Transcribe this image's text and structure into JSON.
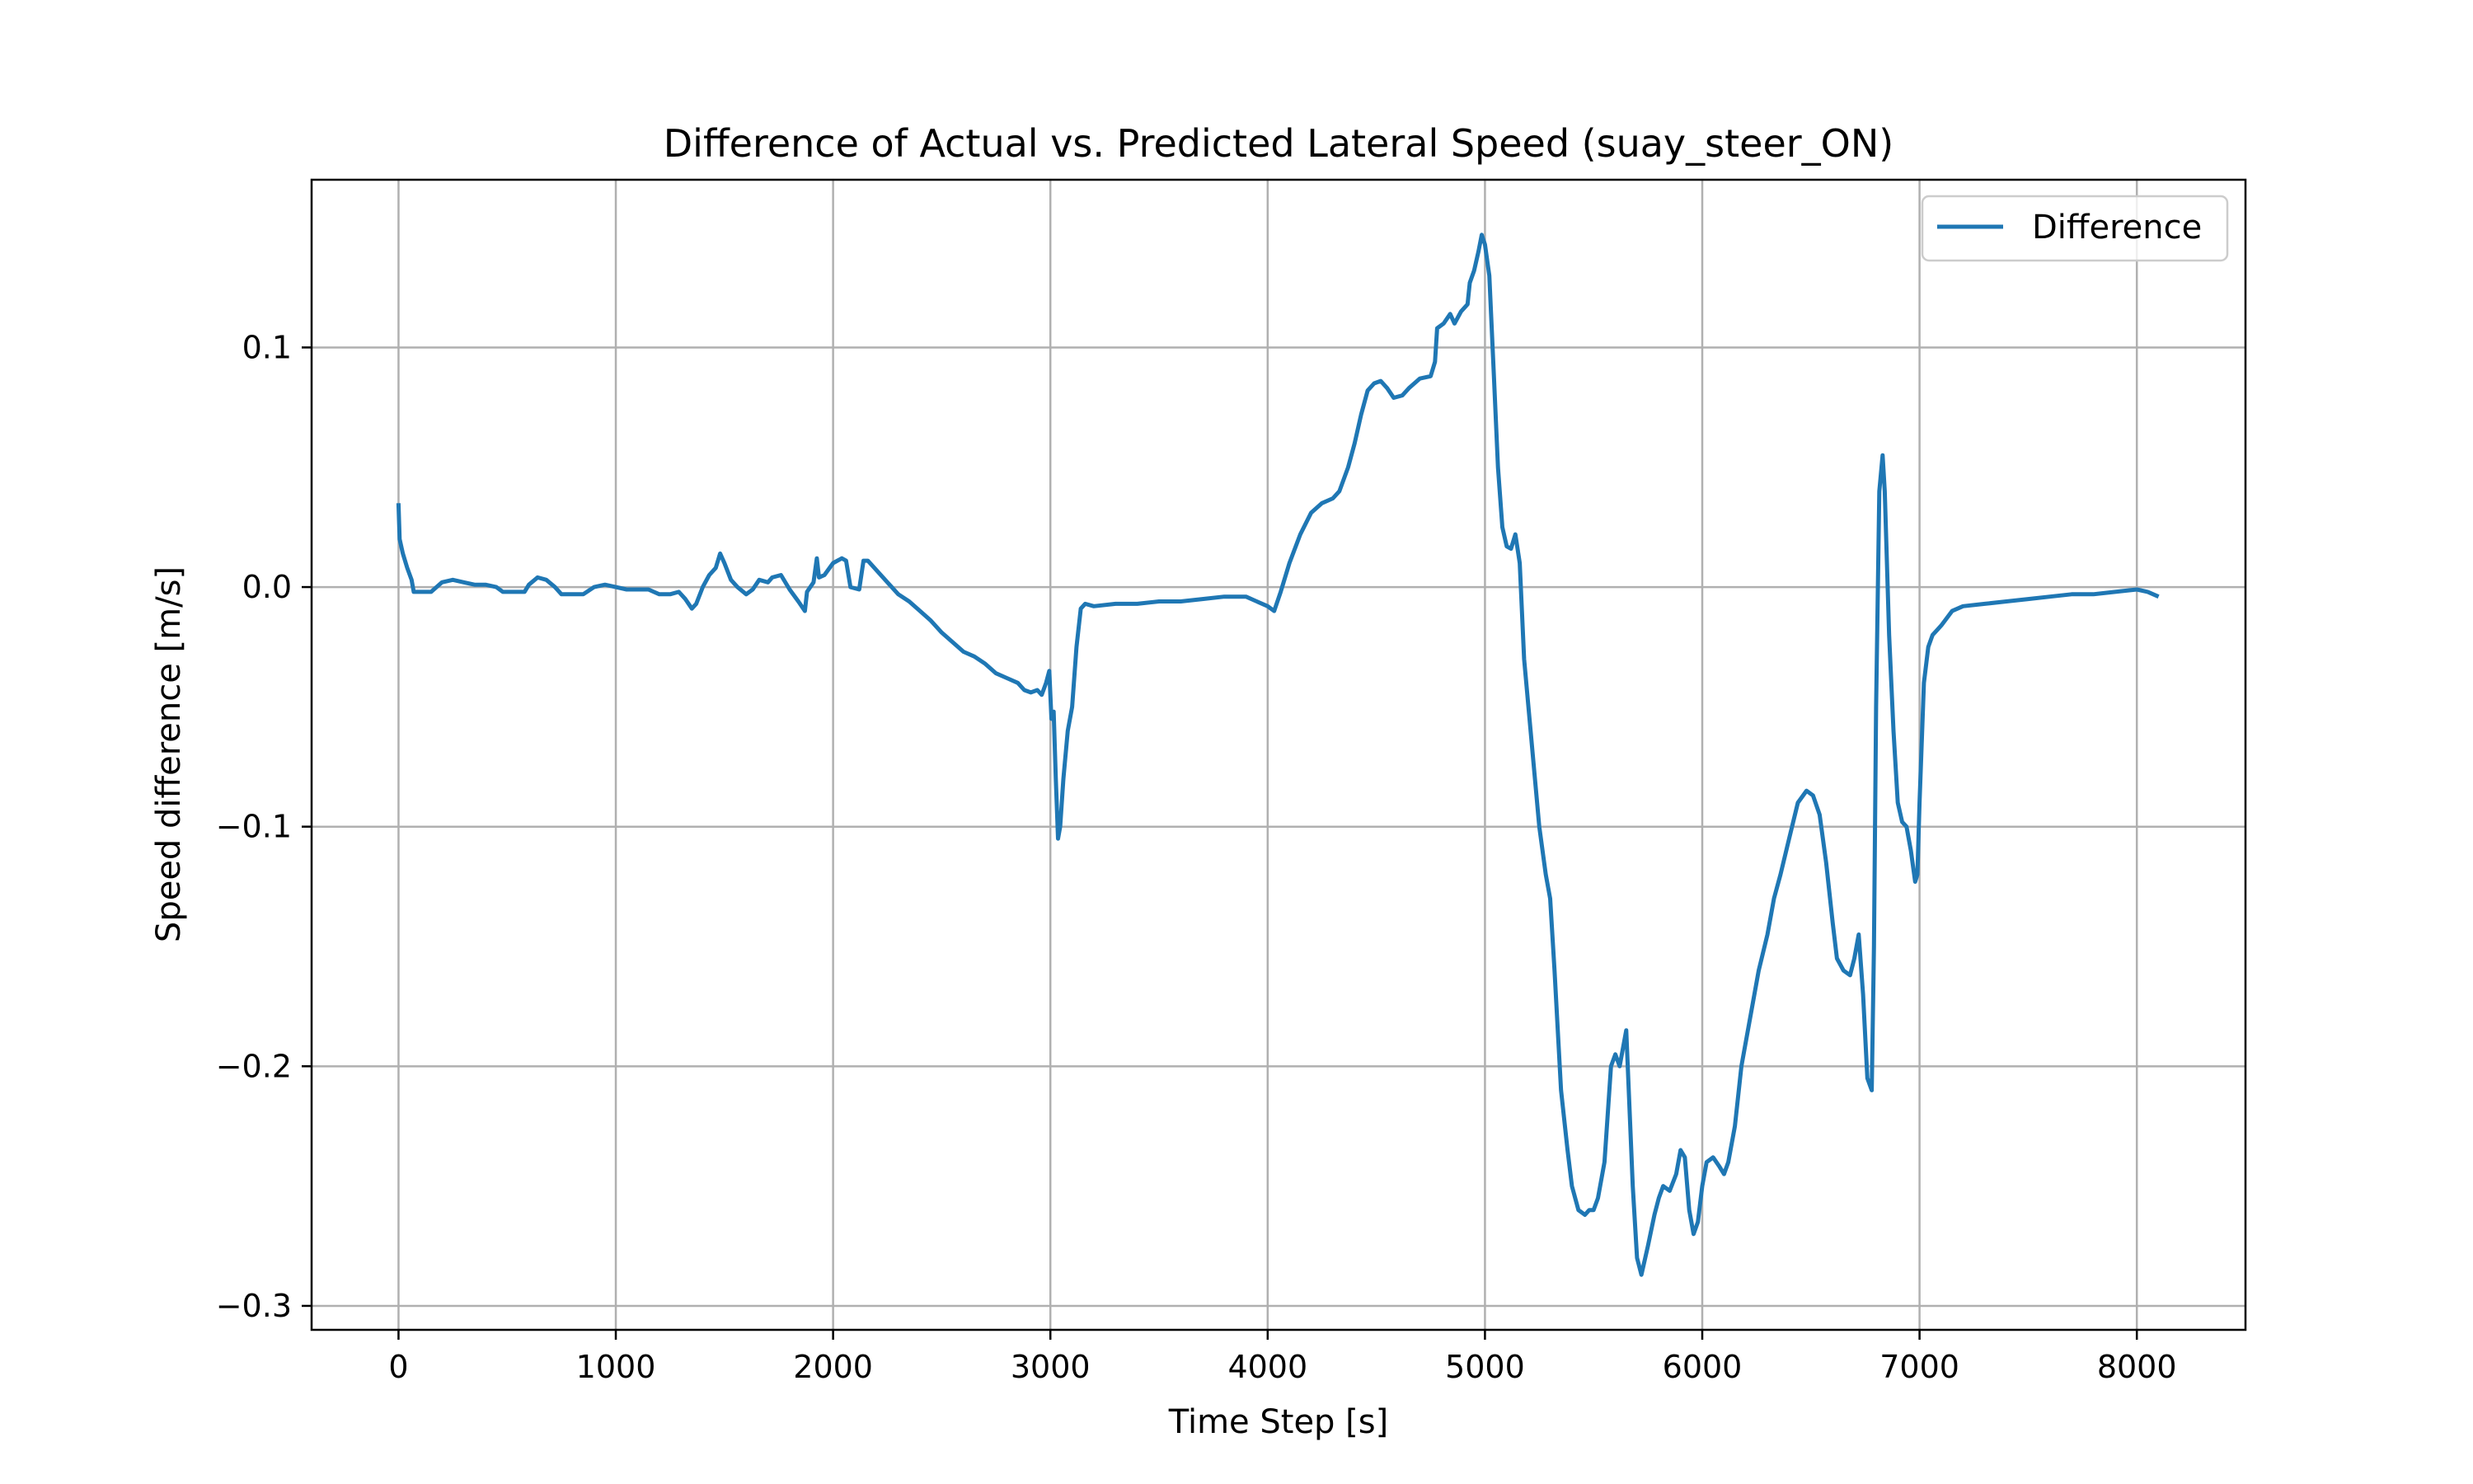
{
  "chart_data": {
    "type": "line",
    "title": "Difference of Actual vs. Predicted Lateral Speed (suay_steer_ON)",
    "xlabel": "Time Step [s]",
    "ylabel": "Speed difference [m/s]",
    "xlim": [
      -400,
      8500
    ],
    "ylim": [
      -0.31,
      0.17
    ],
    "xticks": [
      0,
      1000,
      2000,
      3000,
      4000,
      5000,
      6000,
      7000,
      8000
    ],
    "xtick_labels": [
      "0",
      "1000",
      "2000",
      "3000",
      "4000",
      "5000",
      "6000",
      "7000",
      "8000"
    ],
    "yticks": [
      -0.3,
      -0.2,
      -0.1,
      0.0,
      0.1
    ],
    "ytick_labels": [
      "−0.3",
      "−0.2",
      "−0.1",
      "0.0",
      "0.1"
    ],
    "grid": true,
    "legend_position": "upper right",
    "series": [
      {
        "name": "Difference",
        "color": "#1f77b4",
        "points": [
          [
            0,
            0.035
          ],
          [
            5,
            0.02
          ],
          [
            20,
            0.014
          ],
          [
            40,
            0.008
          ],
          [
            60,
            0.003
          ],
          [
            70,
            -0.002
          ],
          [
            100,
            -0.002
          ],
          [
            150,
            -0.002
          ],
          [
            200,
            0.002
          ],
          [
            250,
            0.003
          ],
          [
            300,
            0.002
          ],
          [
            350,
            0.001
          ],
          [
            400,
            0.001
          ],
          [
            450,
            0.0
          ],
          [
            480,
            -0.002
          ],
          [
            520,
            -0.002
          ],
          [
            580,
            -0.002
          ],
          [
            600,
            0.001
          ],
          [
            640,
            0.004
          ],
          [
            680,
            0.003
          ],
          [
            720,
            0.0
          ],
          [
            750,
            -0.003
          ],
          [
            800,
            -0.003
          ],
          [
            850,
            -0.003
          ],
          [
            900,
            0.0
          ],
          [
            950,
            0.001
          ],
          [
            1000,
            0.0
          ],
          [
            1050,
            -0.001
          ],
          [
            1100,
            -0.001
          ],
          [
            1150,
            -0.001
          ],
          [
            1200,
            -0.003
          ],
          [
            1250,
            -0.003
          ],
          [
            1290,
            -0.002
          ],
          [
            1320,
            -0.005
          ],
          [
            1350,
            -0.009
          ],
          [
            1370,
            -0.007
          ],
          [
            1400,
            0.0
          ],
          [
            1430,
            0.005
          ],
          [
            1460,
            0.008
          ],
          [
            1480,
            0.014
          ],
          [
            1500,
            0.01
          ],
          [
            1530,
            0.003
          ],
          [
            1560,
            0.0
          ],
          [
            1600,
            -0.003
          ],
          [
            1630,
            -0.001
          ],
          [
            1660,
            0.003
          ],
          [
            1700,
            0.002
          ],
          [
            1720,
            0.004
          ],
          [
            1760,
            0.005
          ],
          [
            1800,
            -0.001
          ],
          [
            1840,
            -0.006
          ],
          [
            1870,
            -0.01
          ],
          [
            1880,
            -0.002
          ],
          [
            1910,
            0.002
          ],
          [
            1925,
            0.012
          ],
          [
            1935,
            0.004
          ],
          [
            1960,
            0.005
          ],
          [
            2000,
            0.01
          ],
          [
            2040,
            0.012
          ],
          [
            2060,
            0.011
          ],
          [
            2080,
            0.0
          ],
          [
            2120,
            -0.001
          ],
          [
            2140,
            0.011
          ],
          [
            2160,
            0.011
          ],
          [
            2200,
            0.007
          ],
          [
            2250,
            0.002
          ],
          [
            2300,
            -0.003
          ],
          [
            2350,
            -0.006
          ],
          [
            2400,
            -0.01
          ],
          [
            2450,
            -0.014
          ],
          [
            2500,
            -0.019
          ],
          [
            2550,
            -0.023
          ],
          [
            2600,
            -0.027
          ],
          [
            2650,
            -0.029
          ],
          [
            2700,
            -0.032
          ],
          [
            2750,
            -0.036
          ],
          [
            2800,
            -0.038
          ],
          [
            2850,
            -0.04
          ],
          [
            2880,
            -0.043
          ],
          [
            2910,
            -0.044
          ],
          [
            2940,
            -0.043
          ],
          [
            2960,
            -0.045
          ],
          [
            2980,
            -0.04
          ],
          [
            2995,
            -0.035
          ],
          [
            3005,
            -0.055
          ],
          [
            3015,
            -0.052
          ],
          [
            3025,
            -0.08
          ],
          [
            3035,
            -0.105
          ],
          [
            3045,
            -0.1
          ],
          [
            3060,
            -0.08
          ],
          [
            3080,
            -0.06
          ],
          [
            3100,
            -0.05
          ],
          [
            3120,
            -0.025
          ],
          [
            3140,
            -0.009
          ],
          [
            3160,
            -0.007
          ],
          [
            3200,
            -0.008
          ],
          [
            3300,
            -0.007
          ],
          [
            3400,
            -0.007
          ],
          [
            3500,
            -0.006
          ],
          [
            3600,
            -0.006
          ],
          [
            3700,
            -0.005
          ],
          [
            3800,
            -0.004
          ],
          [
            3900,
            -0.004
          ],
          [
            3950,
            -0.006
          ],
          [
            4000,
            -0.008
          ],
          [
            4030,
            -0.01
          ],
          [
            4060,
            -0.002
          ],
          [
            4100,
            0.01
          ],
          [
            4150,
            0.022
          ],
          [
            4200,
            0.031
          ],
          [
            4250,
            0.035
          ],
          [
            4300,
            0.037
          ],
          [
            4330,
            0.04
          ],
          [
            4370,
            0.05
          ],
          [
            4400,
            0.06
          ],
          [
            4430,
            0.072
          ],
          [
            4460,
            0.082
          ],
          [
            4490,
            0.085
          ],
          [
            4520,
            0.086
          ],
          [
            4550,
            0.083
          ],
          [
            4580,
            0.079
          ],
          [
            4620,
            0.08
          ],
          [
            4650,
            0.083
          ],
          [
            4700,
            0.087
          ],
          [
            4750,
            0.088
          ],
          [
            4770,
            0.094
          ],
          [
            4780,
            0.108
          ],
          [
            4810,
            0.11
          ],
          [
            4840,
            0.114
          ],
          [
            4860,
            0.11
          ],
          [
            4890,
            0.115
          ],
          [
            4920,
            0.118
          ],
          [
            4930,
            0.127
          ],
          [
            4950,
            0.132
          ],
          [
            4970,
            0.14
          ],
          [
            4985,
            0.147
          ],
          [
            5000,
            0.143
          ],
          [
            5020,
            0.13
          ],
          [
            5040,
            0.09
          ],
          [
            5060,
            0.05
          ],
          [
            5080,
            0.025
          ],
          [
            5100,
            0.017
          ],
          [
            5120,
            0.016
          ],
          [
            5140,
            0.022
          ],
          [
            5160,
            0.01
          ],
          [
            5180,
            -0.03
          ],
          [
            5220,
            -0.07
          ],
          [
            5250,
            -0.1
          ],
          [
            5280,
            -0.12
          ],
          [
            5300,
            -0.13
          ],
          [
            5320,
            -0.16
          ],
          [
            5350,
            -0.21
          ],
          [
            5380,
            -0.235
          ],
          [
            5400,
            -0.25
          ],
          [
            5430,
            -0.26
          ],
          [
            5460,
            -0.262
          ],
          [
            5480,
            -0.26
          ],
          [
            5500,
            -0.26
          ],
          [
            5520,
            -0.255
          ],
          [
            5550,
            -0.24
          ],
          [
            5580,
            -0.2
          ],
          [
            5600,
            -0.195
          ],
          [
            5620,
            -0.2
          ],
          [
            5650,
            -0.185
          ],
          [
            5680,
            -0.25
          ],
          [
            5700,
            -0.28
          ],
          [
            5720,
            -0.287
          ],
          [
            5750,
            -0.275
          ],
          [
            5780,
            -0.262
          ],
          [
            5800,
            -0.255
          ],
          [
            5820,
            -0.25
          ],
          [
            5850,
            -0.252
          ],
          [
            5880,
            -0.245
          ],
          [
            5900,
            -0.235
          ],
          [
            5920,
            -0.238
          ],
          [
            5940,
            -0.26
          ],
          [
            5960,
            -0.27
          ],
          [
            5980,
            -0.265
          ],
          [
            6000,
            -0.25
          ],
          [
            6020,
            -0.24
          ],
          [
            6050,
            -0.238
          ],
          [
            6080,
            -0.242
          ],
          [
            6100,
            -0.245
          ],
          [
            6120,
            -0.24
          ],
          [
            6150,
            -0.225
          ],
          [
            6180,
            -0.2
          ],
          [
            6220,
            -0.18
          ],
          [
            6260,
            -0.16
          ],
          [
            6300,
            -0.145
          ],
          [
            6330,
            -0.13
          ],
          [
            6360,
            -0.12
          ],
          [
            6400,
            -0.105
          ],
          [
            6440,
            -0.09
          ],
          [
            6480,
            -0.085
          ],
          [
            6510,
            -0.087
          ],
          [
            6540,
            -0.095
          ],
          [
            6570,
            -0.115
          ],
          [
            6600,
            -0.14
          ],
          [
            6620,
            -0.155
          ],
          [
            6650,
            -0.16
          ],
          [
            6680,
            -0.162
          ],
          [
            6700,
            -0.155
          ],
          [
            6720,
            -0.145
          ],
          [
            6740,
            -0.17
          ],
          [
            6760,
            -0.205
          ],
          [
            6780,
            -0.21
          ],
          [
            6790,
            -0.15
          ],
          [
            6800,
            -0.05
          ],
          [
            6815,
            0.04
          ],
          [
            6830,
            0.055
          ],
          [
            6840,
            0.04
          ],
          [
            6860,
            -0.02
          ],
          [
            6880,
            -0.06
          ],
          [
            6900,
            -0.09
          ],
          [
            6920,
            -0.098
          ],
          [
            6940,
            -0.1
          ],
          [
            6960,
            -0.11
          ],
          [
            6980,
            -0.123
          ],
          [
            6990,
            -0.12
          ],
          [
            7000,
            -0.09
          ],
          [
            7020,
            -0.04
          ],
          [
            7040,
            -0.025
          ],
          [
            7060,
            -0.02
          ],
          [
            7080,
            -0.018
          ],
          [
            7100,
            -0.016
          ],
          [
            7150,
            -0.01
          ],
          [
            7200,
            -0.008
          ],
          [
            7300,
            -0.007
          ],
          [
            7400,
            -0.006
          ],
          [
            7500,
            -0.005
          ],
          [
            7600,
            -0.004
          ],
          [
            7700,
            -0.003
          ],
          [
            7800,
            -0.003
          ],
          [
            7900,
            -0.002
          ],
          [
            8000,
            -0.001
          ],
          [
            8050,
            -0.002
          ],
          [
            8100,
            -0.004
          ]
        ]
      }
    ]
  }
}
